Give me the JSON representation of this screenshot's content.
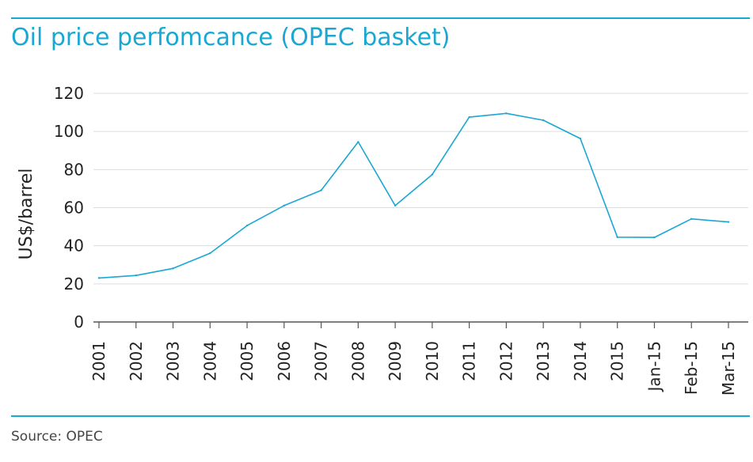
{
  "colors": {
    "accent": "#1aa7d2",
    "grid": "#dddddd",
    "axis": "#555555",
    "text": "#222222"
  },
  "title": "Oil price perfomcance (OPEC basket)",
  "source": "Source: OPEC",
  "chart_data": {
    "type": "line",
    "title": "Oil price perfomcance (OPEC basket)",
    "xlabel": "",
    "ylabel": "US$/barrel",
    "ylim": [
      0,
      120
    ],
    "yticks": [
      0,
      20,
      40,
      60,
      80,
      100,
      120
    ],
    "grid": true,
    "legend": "none",
    "categories": [
      "2001",
      "2002",
      "2003",
      "2004",
      "2005",
      "2006",
      "2007",
      "2008",
      "2009",
      "2010",
      "2011",
      "2012",
      "2013",
      "2014",
      "2015",
      "Jan-15",
      "Feb-15",
      "Mar-15"
    ],
    "series": [
      {
        "values": [
          23.1,
          24.4,
          28.1,
          36.1,
          50.6,
          61.1,
          69.1,
          94.5,
          61.1,
          77.4,
          107.5,
          109.5,
          105.9,
          96.3,
          44.5,
          44.4,
          54.1,
          52.5
        ]
      }
    ]
  }
}
